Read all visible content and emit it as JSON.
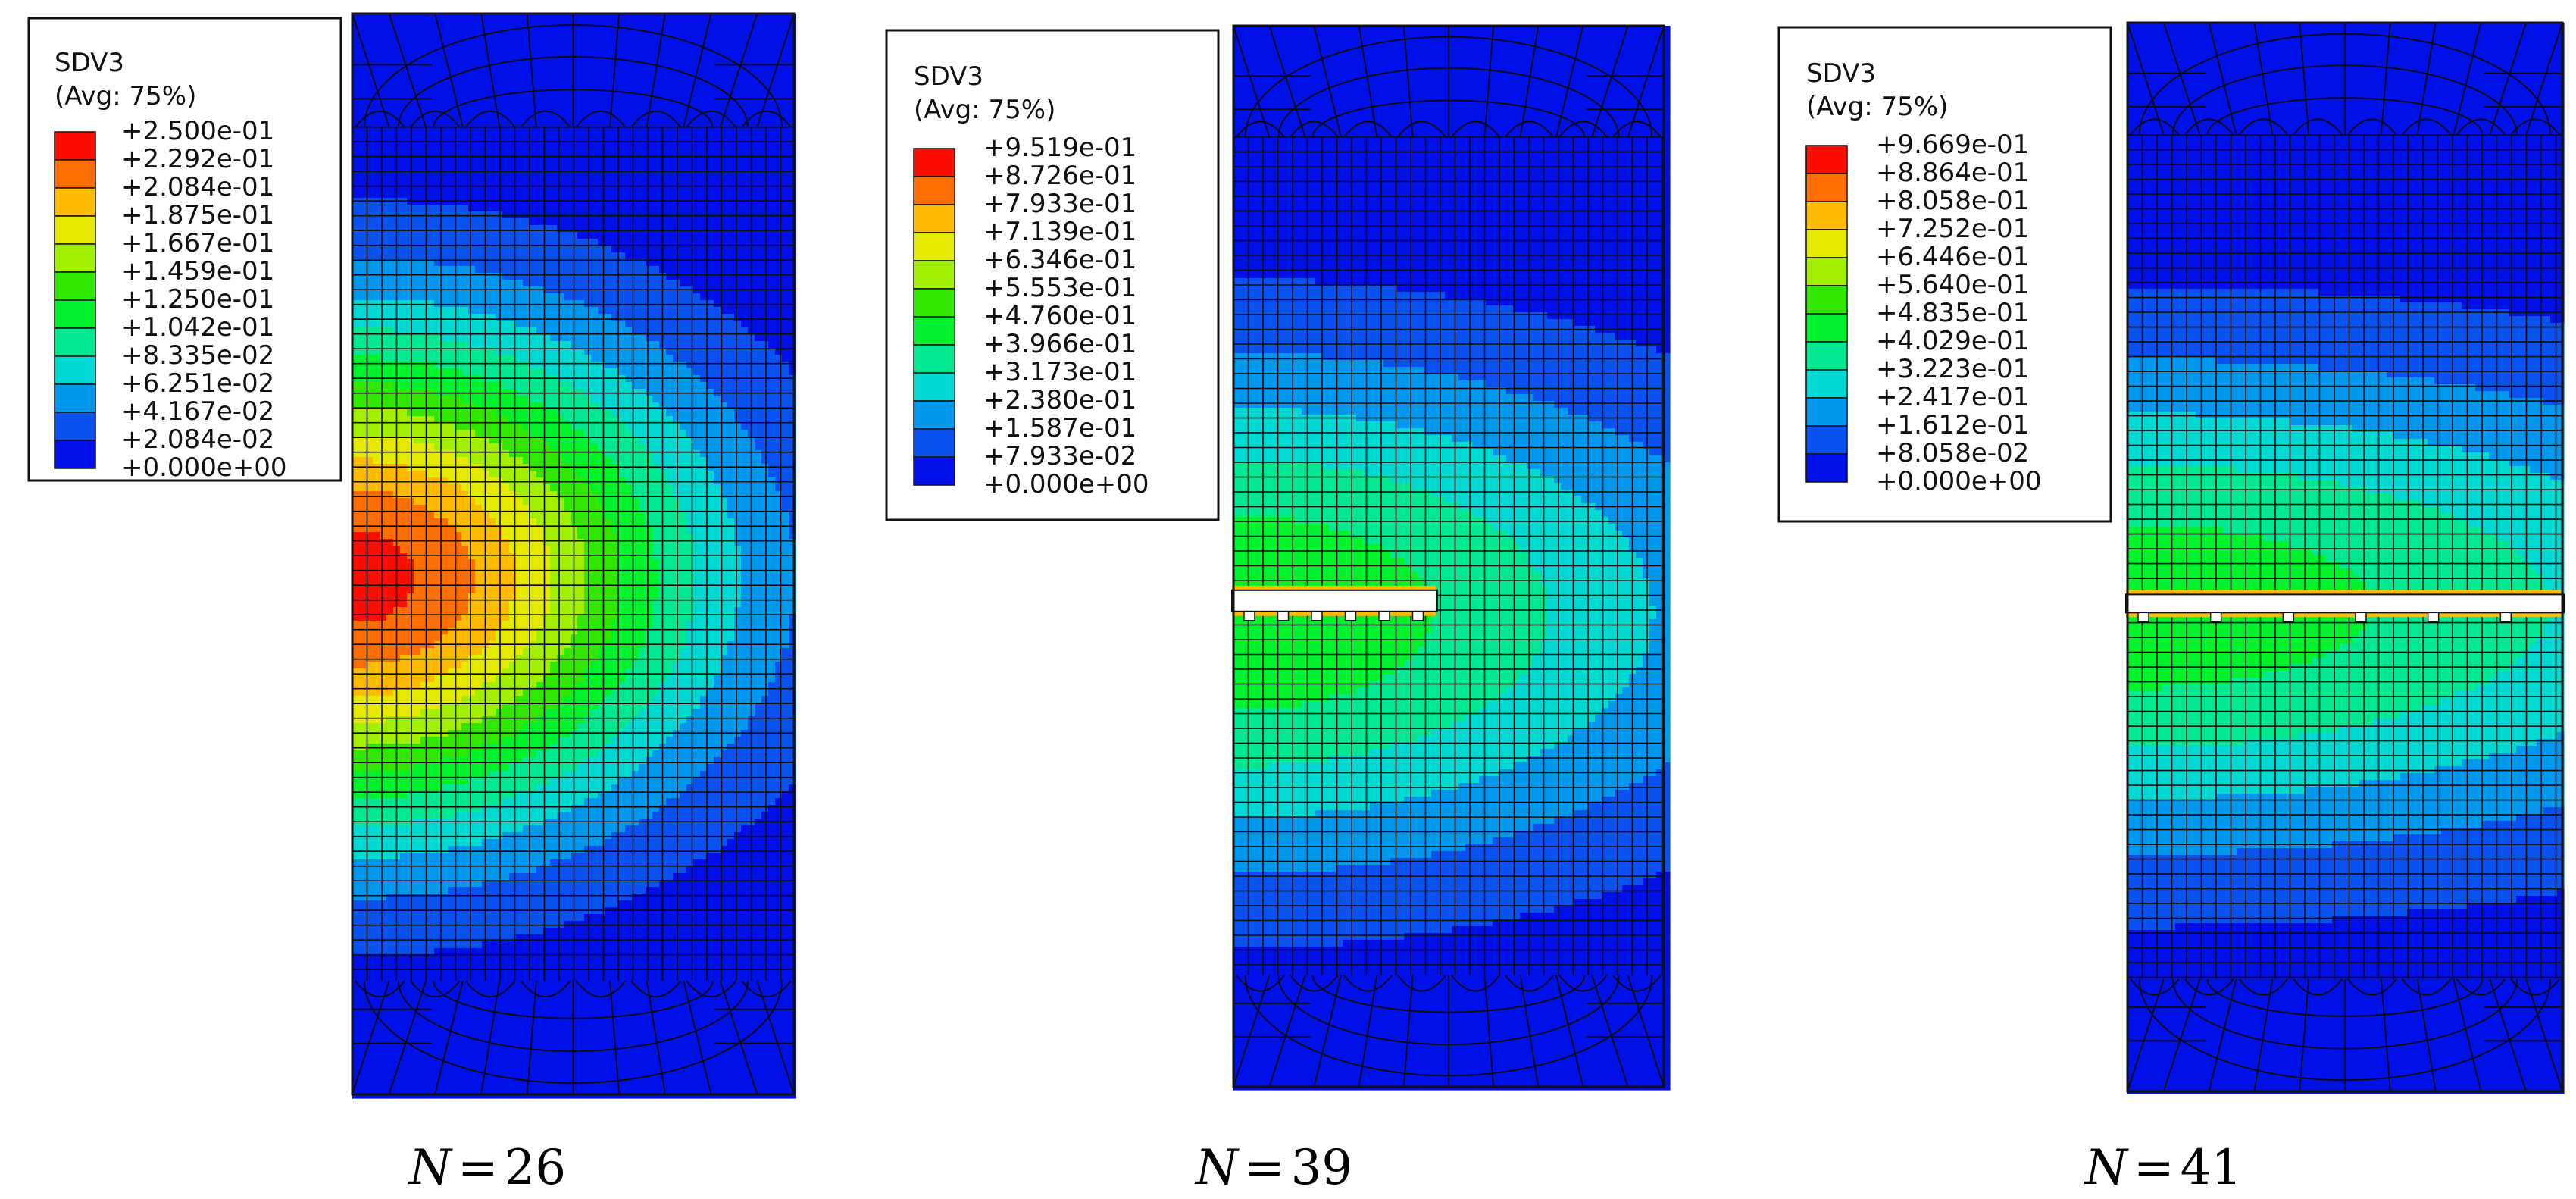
{
  "palette": {
    "0": "#0010e8",
    "1": "#0a52f0",
    "2": "#0098ee",
    "3": "#00d8d2",
    "4": "#00e890",
    "5": "#00f22c",
    "6": "#33e800",
    "7": "#a2f000",
    "8": "#e6ea00",
    "9": "#ffbb00",
    "10": "#ff6e00",
    "11": "#ff0c00"
  },
  "mesh_line_color": "#0a0a0a",
  "panels": [
    {
      "legend": {
        "variable": "SDV3",
        "averaging": "(Avg: 75%)",
        "values": [
          "+2.500e-01",
          "+2.292e-01",
          "+2.084e-01",
          "+1.875e-01",
          "+1.667e-01",
          "+1.459e-01",
          "+1.250e-01",
          "+1.042e-01",
          "+8.335e-02",
          "+6.251e-02",
          "+4.167e-02",
          "+2.084e-02",
          "+0.000e+00"
        ]
      },
      "caption": {
        "symbol": "N",
        "eq": "=",
        "value": "26"
      },
      "field": {
        "peak_level": 11.4,
        "crack": "none"
      }
    },
    {
      "legend": {
        "variable": "SDV3",
        "averaging": "(Avg: 75%)",
        "values": [
          "+9.519e-01",
          "+8.726e-01",
          "+7.933e-01",
          "+7.139e-01",
          "+6.346e-01",
          "+5.553e-01",
          "+4.760e-01",
          "+3.966e-01",
          "+3.173e-01",
          "+2.380e-01",
          "+1.587e-01",
          "+7.933e-02",
          "+0.000e+00"
        ]
      },
      "caption": {
        "symbol": "N",
        "eq": "=",
        "value": "39"
      },
      "field": {
        "peak_level": 5.8,
        "crack": "partial"
      }
    },
    {
      "legend": {
        "variable": "SDV3",
        "averaging": "(Avg: 75%)",
        "values": [
          "+9.669e-01",
          "+8.864e-01",
          "+8.058e-01",
          "+7.252e-01",
          "+6.446e-01",
          "+5.640e-01",
          "+4.835e-01",
          "+4.029e-01",
          "+3.223e-01",
          "+2.417e-01",
          "+1.612e-01",
          "+8.058e-02",
          "+0.000e+00"
        ]
      },
      "caption": {
        "symbol": "N",
        "eq": "=",
        "value": "41"
      },
      "field": {
        "peak_level": 5.6,
        "crack": "full"
      }
    }
  ]
}
